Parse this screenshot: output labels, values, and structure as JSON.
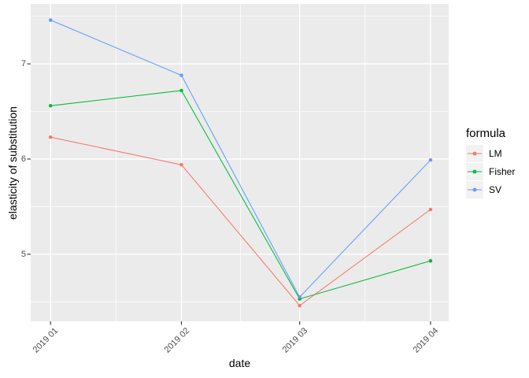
{
  "chart_data": {
    "type": "line",
    "title": "",
    "xlabel": "date",
    "ylabel": "elasticity of substitution",
    "legend_title": "formula",
    "legend_position": "right",
    "categories": [
      "2019 01",
      "2019 02",
      "2019 03",
      "2019 04"
    ],
    "x_days": [
      0,
      31,
      59,
      90
    ],
    "x_minor_days": [
      15.5,
      45,
      74.5
    ],
    "xlim_days": [
      -4.7,
      94.3
    ],
    "y_major_ticks": [
      5,
      6,
      7
    ],
    "y_minor_ticks": [
      4.5,
      5.5,
      6.5,
      7.5
    ],
    "ylim": [
      4.295,
      7.63
    ],
    "grid": "on",
    "series": [
      {
        "name": "LM",
        "color": "#F8766D",
        "values": [
          6.23,
          5.94,
          4.46,
          5.47
        ]
      },
      {
        "name": "Fisher",
        "color": "#00BA38",
        "values": [
          6.56,
          6.72,
          4.53,
          4.93
        ]
      },
      {
        "name": "SV",
        "color": "#619CFF",
        "values": [
          7.46,
          6.88,
          4.55,
          5.99
        ]
      }
    ],
    "colors": {
      "panel_bg": "#EBEBEB",
      "grid": "#FFFFFF",
      "tick_mark": "#333333",
      "tick_label": "#4D4D4D",
      "axis_title": "#000000",
      "legend_key_bg": "#F2F2F2"
    }
  }
}
